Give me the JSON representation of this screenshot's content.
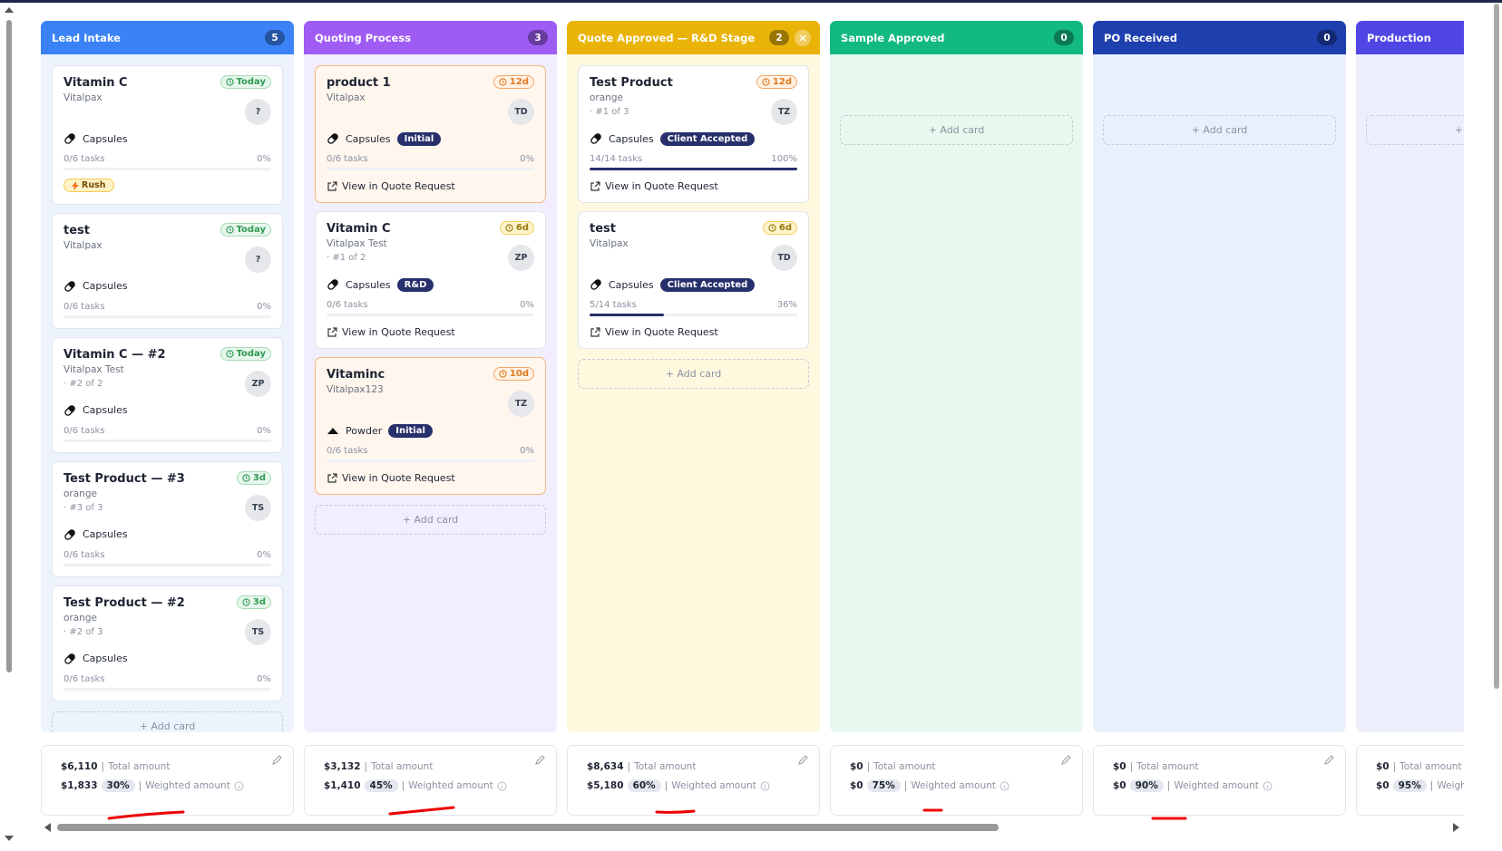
{
  "labels": {
    "add_card": "+ Add card",
    "total_amount": "Total amount",
    "weighted_amount": "Weighted amount"
  },
  "columns": [
    {
      "title": "Lead Intake",
      "count": 5,
      "color": "#3b82f6",
      "body_color": "#edf3fd",
      "cards": [
        {
          "title": "Vitamin C",
          "company": "Vitalpax",
          "due": "Today",
          "due_tone": "green",
          "avatar": "?",
          "form": "Capsules",
          "icon": "capsule",
          "tasks": "0/6 tasks",
          "progress": "0%",
          "rush": "Rush"
        },
        {
          "title": "test",
          "company": "Vitalpax",
          "due": "Today",
          "due_tone": "green",
          "avatar": "?",
          "form": "Capsules",
          "icon": "capsule",
          "tasks": "0/6 tasks",
          "progress": "0%"
        },
        {
          "title": "Vitamin C — #2",
          "company": "Vitalpax Test",
          "sequence": "· #2 of 2",
          "due": "Today",
          "due_tone": "green",
          "avatar": "ZP",
          "form": "Capsules",
          "icon": "capsule",
          "tasks": "0/6 tasks",
          "progress": "0%"
        },
        {
          "title": "Test Product — #3",
          "company": "orange",
          "sequence": "· #3 of 3",
          "due": "3d",
          "due_tone": "green",
          "avatar": "TS",
          "form": "Capsules",
          "icon": "capsule",
          "tasks": "0/6 tasks",
          "progress": "0%"
        },
        {
          "title": "Test Product — #2",
          "company": "orange",
          "sequence": "· #2 of 3",
          "due": "3d",
          "due_tone": "green",
          "avatar": "TS",
          "form": "Capsules",
          "icon": "capsule",
          "tasks": "0/6 tasks",
          "progress": "0%"
        }
      ],
      "footer": {
        "total": "$6,110",
        "weighted": "$1,833",
        "percent": "30%"
      }
    },
    {
      "title": "Quoting Process",
      "count": 3,
      "color": "#9f5cf5",
      "body_color": "#f2eefd",
      "cards": [
        {
          "title": "product 1",
          "company": "Vitalpax",
          "due": "12d",
          "due_tone": "orange",
          "avatar": "TD",
          "form": "Capsules",
          "icon": "capsule",
          "tag": "Initial",
          "tasks": "0/6 tasks",
          "progress": "0%",
          "link": "View in Quote Request",
          "highlight": true
        },
        {
          "title": "Vitamin C",
          "company": "Vitalpax Test",
          "sequence": "· #1 of 2",
          "due": "6d",
          "due_tone": "yellow",
          "avatar": "ZP",
          "form": "Capsules",
          "icon": "capsule",
          "tag": "R&D",
          "tasks": "0/6 tasks",
          "progress": "0%",
          "link": "View in Quote Request"
        },
        {
          "title": "Vitaminc",
          "company": "Vitalpax123",
          "due": "10d",
          "due_tone": "orange",
          "avatar": "TZ",
          "form": "Powder",
          "icon": "powder",
          "tag": "Initial",
          "tasks": "0/6 tasks",
          "progress": "0%",
          "link": "View in Quote Request",
          "highlight": true
        }
      ],
      "footer": {
        "total": "$3,132",
        "weighted": "$1,410",
        "percent": "45%"
      }
    },
    {
      "title": "Quote Approved — R&D Stage",
      "count": 2,
      "color": "#eab308",
      "body_color": "#fef8df",
      "closable": true,
      "cards": [
        {
          "title": "Test Product",
          "company": "orange",
          "sequence": "· #1 of 3",
          "due": "12d",
          "due_tone": "orange",
          "avatar": "TZ",
          "form": "Capsules",
          "icon": "capsule",
          "tag": "Client Accepted",
          "tasks": "14/14 tasks",
          "progress": "100%",
          "link": "View in Quote Request"
        },
        {
          "title": "test",
          "company": "Vitalpax",
          "due": "6d",
          "due_tone": "yellow",
          "avatar": "TD",
          "form": "Capsules",
          "icon": "capsule",
          "tag": "Client Accepted",
          "tasks": "5/14 tasks",
          "progress": "36%",
          "link": "View in Quote Request"
        }
      ],
      "footer": {
        "total": "$8,634",
        "weighted": "$5,180",
        "percent": "60%"
      }
    },
    {
      "title": "Sample Approved",
      "count": 0,
      "color": "#12b981",
      "body_color": "#e7f8ef",
      "cards": [],
      "footer": {
        "total": "$0",
        "weighted": "$0",
        "percent": "75%"
      }
    },
    {
      "title": "PO Received",
      "count": 0,
      "color": "#1e3fae",
      "body_color": "#e9effb",
      "cards": [],
      "footer": {
        "total": "$0",
        "weighted": "$0",
        "percent": "90%"
      }
    },
    {
      "title": "Production",
      "color": "#4f46e5",
      "body_color": "#eceffb",
      "cards": [],
      "footer": {
        "total": "$0",
        "weighted": "$0",
        "percent": "95%"
      }
    }
  ]
}
